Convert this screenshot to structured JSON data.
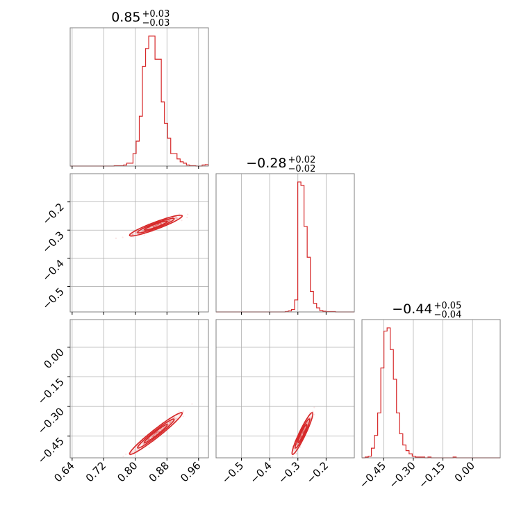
{
  "colors": {
    "series": "#d62728",
    "grid": "#b0b0b0",
    "frame": "#808080"
  },
  "chart_data": {
    "type": "corner",
    "grid": true,
    "axes": [
      {
        "ticks": [
          "0.64",
          "0.72",
          "0.80",
          "0.88",
          "0.96"
        ],
        "tick_values": [
          0.64,
          0.72,
          0.8,
          0.88,
          0.96
        ],
        "range": [
          0.635,
          0.985
        ]
      },
      {
        "ticks": [
          "−0.5",
          "−0.4",
          "−0.3",
          "−0.2"
        ],
        "tick_values": [
          -0.5,
          -0.4,
          -0.3,
          -0.2
        ],
        "range": [
          -0.59,
          -0.1
        ]
      },
      {
        "ticks": [
          "−0.45",
          "−0.30",
          "−0.15",
          "0.00"
        ],
        "tick_values": [
          -0.45,
          -0.3,
          -0.15,
          0.0
        ],
        "range": [
          -0.56,
          0.14
        ]
      }
    ],
    "diagonal": [
      {
        "title_value": "0.85",
        "title_plus": "+0.03",
        "title_minus": "−0.03",
        "hist": {
          "x0": 0.635,
          "x1": 0.985,
          "counts": [
            0,
            0,
            0,
            0,
            0,
            0,
            0,
            0,
            0,
            0,
            0,
            0,
            0,
            0,
            1,
            1,
            1,
            3,
            8,
            8,
            35,
            70,
            140,
            280,
            330,
            365,
            365,
            300,
            300,
            180,
            120,
            78,
            35,
            35,
            20,
            12,
            8,
            3,
            1,
            1,
            0,
            0,
            3,
            4
          ]
        }
      },
      {
        "title_value": "−0.28",
        "title_plus": "+0.02",
        "title_minus": "−0.02",
        "hist": {
          "x0": -0.59,
          "x1": -0.1,
          "counts": [
            0,
            0,
            0,
            0,
            0,
            0,
            0,
            0,
            0,
            0,
            0,
            0,
            0,
            0,
            0,
            0,
            0,
            0,
            0,
            0,
            0,
            0,
            1,
            3,
            7,
            35,
            380,
            370,
            250,
            160,
            60,
            25,
            12,
            4,
            2,
            1,
            1,
            1,
            0,
            0,
            0,
            0,
            0,
            0
          ]
        }
      },
      {
        "title_value": "−0.44",
        "title_plus": "+0.05",
        "title_minus": "−0.04",
        "hist": {
          "x0": -0.56,
          "x1": 0.14,
          "counts": [
            0,
            1,
            2,
            12,
            28,
            56,
            112,
            158,
            162,
            135,
            98,
            56,
            30,
            16,
            9,
            5,
            2,
            1,
            1,
            1,
            0,
            1,
            0,
            0,
            0,
            0,
            0,
            0,
            0,
            1,
            0,
            0,
            0,
            0,
            0,
            0,
            0,
            0,
            0,
            0,
            0,
            0,
            0,
            0
          ]
        }
      }
    ],
    "pairs": [
      {
        "x_param": 0,
        "y_param": 1,
        "mean": [
          0.852,
          -0.284
        ],
        "sd": [
          0.029,
          0.016
        ],
        "corr": 0.93,
        "n_samples": 380
      },
      {
        "x_param": 0,
        "y_param": 2,
        "mean": [
          0.852,
          -0.437
        ],
        "sd": [
          0.029,
          0.046
        ],
        "corr": 0.97,
        "n_samples": 380
      },
      {
        "x_param": 1,
        "y_param": 2,
        "mean": [
          -0.284,
          -0.437
        ],
        "sd": [
          0.016,
          0.046
        ],
        "corr": 0.94,
        "n_samples": 380
      }
    ]
  }
}
